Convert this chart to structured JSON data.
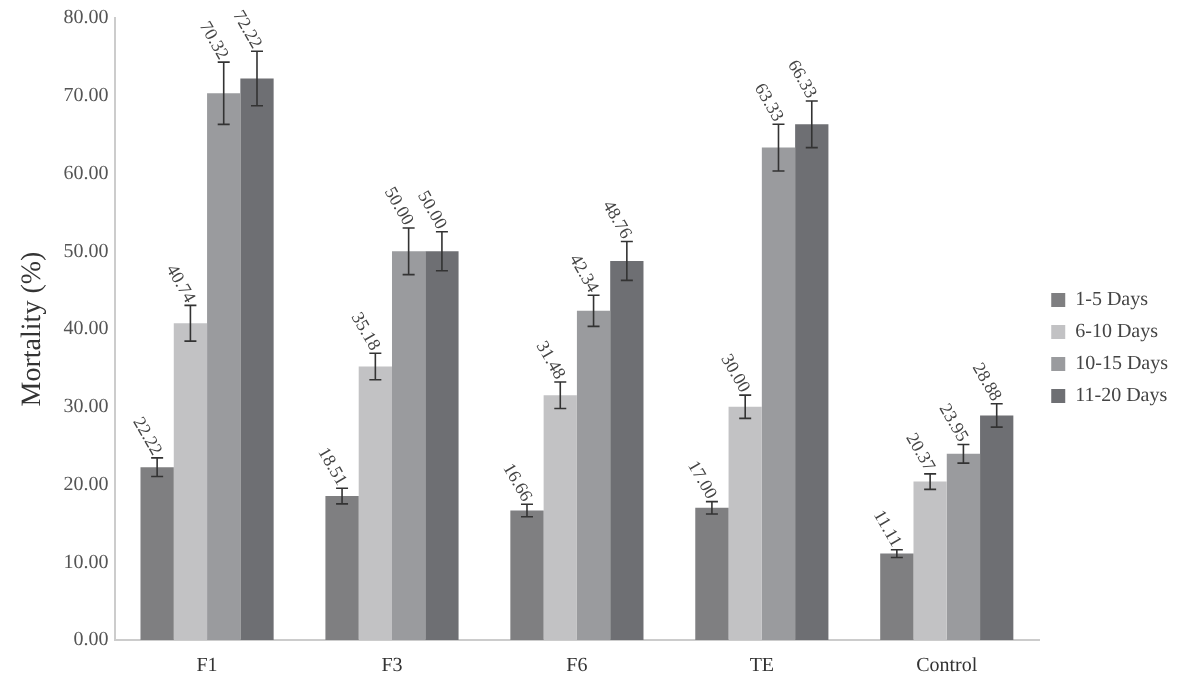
{
  "chart_data": {
    "type": "bar",
    "ylabel": "Mortality (%)",
    "categories": [
      "F1",
      "F3",
      "F6",
      "TE",
      "Control"
    ],
    "series": [
      {
        "name": "1-5 Days",
        "color": "#7f7f81",
        "values": [
          22.22,
          18.51,
          16.66,
          17.0,
          11.11
        ],
        "errors": [
          1.2,
          1.0,
          0.8,
          0.8,
          0.5
        ],
        "value_labels": [
          "22.22",
          "18.51",
          "16.66",
          "17.00",
          "11.11"
        ]
      },
      {
        "name": "6-10 Days",
        "color": "#c2c2c4",
        "values": [
          40.74,
          35.18,
          31.48,
          30.0,
          20.37
        ],
        "errors": [
          2.3,
          1.7,
          1.7,
          1.5,
          1.0
        ],
        "value_labels": [
          "40.74",
          "35.18",
          "31.48",
          "30.00",
          "20.37"
        ]
      },
      {
        "name": "10-15 Days",
        "color": "#9a9b9e",
        "values": [
          70.32,
          50.0,
          42.34,
          63.33,
          23.95
        ],
        "errors": [
          4.0,
          3.0,
          2.0,
          3.0,
          1.2
        ],
        "value_labels": [
          "70.32",
          "50.00",
          "42.34",
          "63.33",
          "23.95"
        ]
      },
      {
        "name": "11-20 Days",
        "color": "#6e6f73",
        "values": [
          72.22,
          50.0,
          48.76,
          66.33,
          28.88
        ],
        "errors": [
          3.5,
          2.5,
          2.5,
          3.0,
          1.5
        ],
        "value_labels": [
          "72.22",
          "50.00",
          "48.76",
          "66.33",
          "28.88"
        ]
      }
    ],
    "ylim": [
      0,
      80
    ],
    "yticks": [
      {
        "value": 0,
        "label": "0.00"
      },
      {
        "value": 10,
        "label": "10.00"
      },
      {
        "value": 20,
        "label": "20.00"
      },
      {
        "value": 30,
        "label": "30.00"
      },
      {
        "value": 40,
        "label": "40.00"
      },
      {
        "value": 50,
        "label": "50.00"
      },
      {
        "value": 60,
        "label": "60.00"
      },
      {
        "value": 70,
        "label": "70.00"
      },
      {
        "value": 80,
        "label": "80.00"
      }
    ],
    "grid": false,
    "legend": "right"
  }
}
